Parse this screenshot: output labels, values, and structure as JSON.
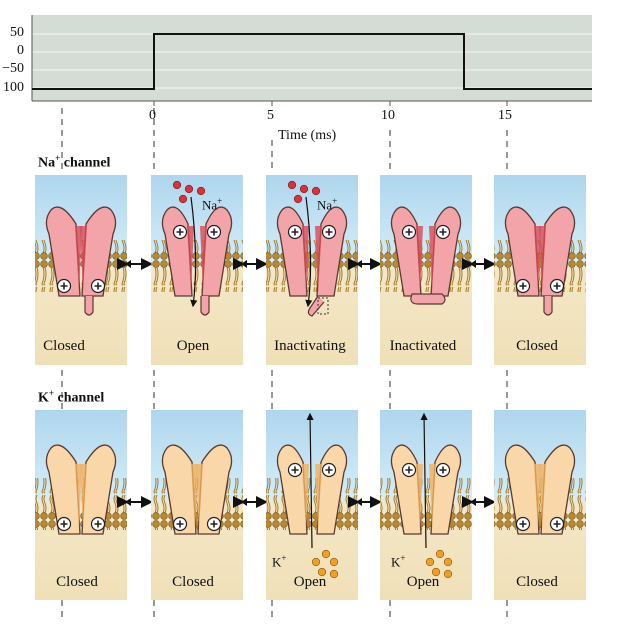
{
  "voltage_plot": {
    "y_ticks": [
      "50",
      "0",
      "−50",
      "100"
    ],
    "x_ticks": [
      "0",
      "5",
      "10",
      "15"
    ],
    "x_axis_label": "Time (ms)",
    "trace_color": "#111111",
    "background_color": "#d4dcd6"
  },
  "na_row": {
    "title": "Na",
    "title_sup": "+",
    "title_suffix": " channel",
    "ion_label": "Na",
    "ion_sup": "+",
    "ion_color": "#d8323a",
    "channel_color": "#f2a4a8",
    "states": [
      "Closed",
      "Open",
      "Inactivating",
      "Inactivated",
      "Closed"
    ]
  },
  "k_row": {
    "title": "K",
    "title_sup": "+",
    "title_suffix": " channel",
    "ion_label": "K",
    "ion_sup": "+",
    "ion_color": "#f0a020",
    "channel_color": "#f9d7a8",
    "states": [
      "Closed",
      "Closed",
      "Open",
      "Open",
      "Closed"
    ]
  },
  "colors": {
    "extracellular": "#bcdff0",
    "intracellular": "#f3e6c4",
    "membrane": "#c99a3a"
  }
}
